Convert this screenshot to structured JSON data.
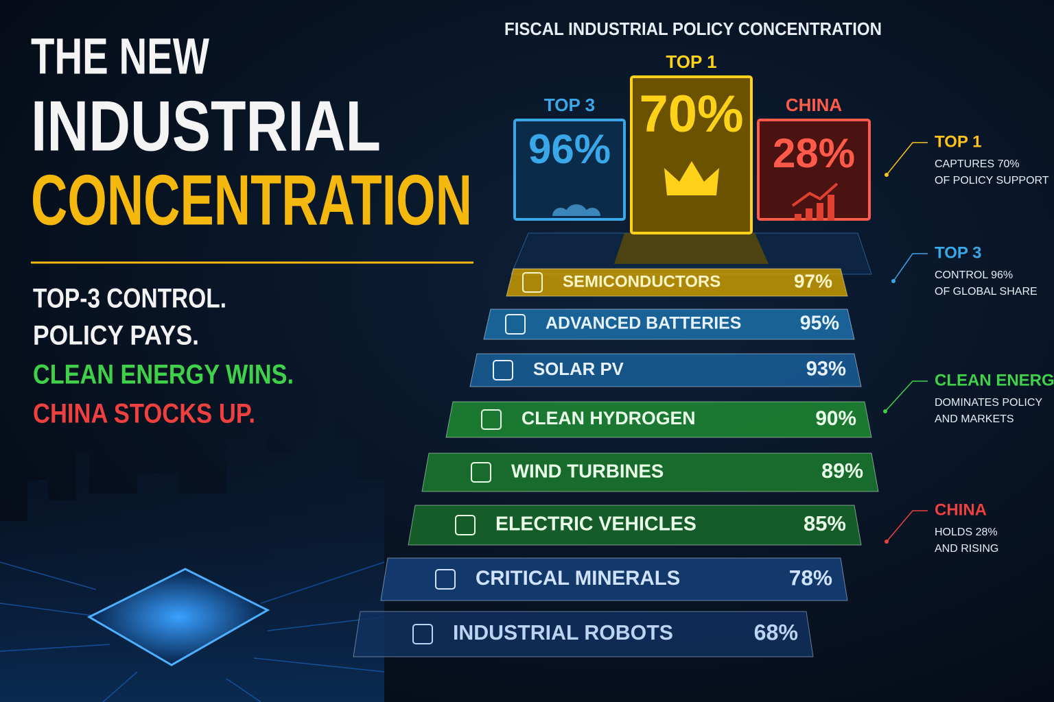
{
  "headline": {
    "line1": "THE NEW",
    "line2": "INDUSTRIAL",
    "line3": "CONCENTRATION"
  },
  "taglines": [
    "TOP-3 CONTROL.",
    "POLICY PAYS.",
    "CLEAN ENERGY WINS.",
    "CHINA STOCKS UP."
  ],
  "panel_title": "FISCAL INDUSTRIAL POLICY CONCENTRATION",
  "podium": [
    {
      "label": "TOP 3",
      "value": "96%"
    },
    {
      "label": "TOP 1",
      "value": "70%"
    },
    {
      "label": "CHINA",
      "value": "28%"
    }
  ],
  "rows": [
    {
      "label": "SEMICONDUCTORS",
      "value": "97%"
    },
    {
      "label": "ADVANCED BATTERIES",
      "value": "95%"
    },
    {
      "label": "SOLAR PV",
      "value": "93%"
    },
    {
      "label": "CLEAN HYDROGEN",
      "value": "90%"
    },
    {
      "label": "WIND TURBINES",
      "value": "89%"
    },
    {
      "label": "ELECTRIC VEHICLES",
      "value": "85%"
    },
    {
      "label": "CRITICAL MINERALS",
      "value": "78%"
    },
    {
      "label": "INDUSTRIAL ROBOTS",
      "value": "68%"
    }
  ],
  "callouts": [
    {
      "title": "TOP 1",
      "lines": [
        "CAPTURES 70%",
        "OF POLICY SUPPORT"
      ]
    },
    {
      "title": "TOP 3",
      "lines": [
        "CONTROL 96%",
        "OF GLOBAL SHARE"
      ]
    },
    {
      "title": "CLEAN ENERGY",
      "lines": [
        "DOMINATES POLICY",
        "AND MARKETS"
      ]
    },
    {
      "title": "CHINA",
      "lines": [
        "HOLDS 28%",
        "AND RISING"
      ]
    }
  ]
}
